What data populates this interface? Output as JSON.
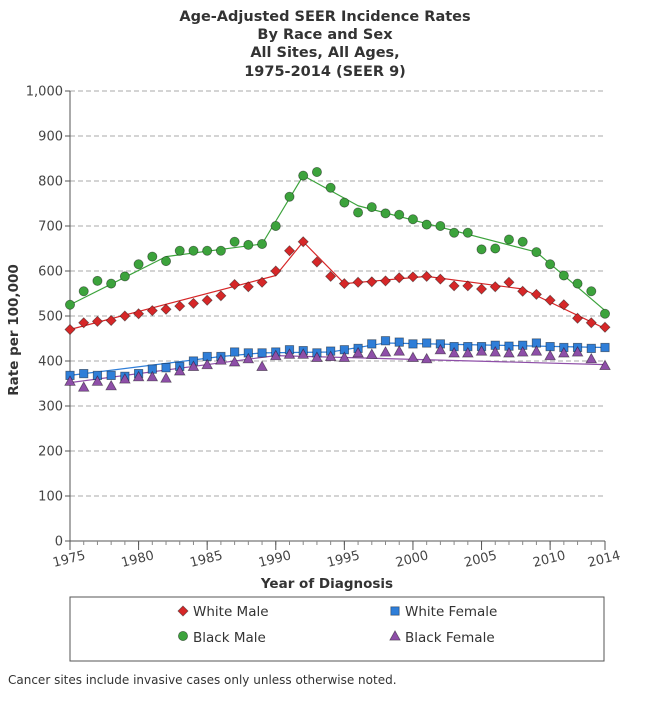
{
  "chart_data": {
    "type": "line",
    "title": [
      "Age-Adjusted SEER Incidence Rates",
      "By Race and Sex",
      "All Sites, All Ages,",
      "1975-2014 (SEER 9)"
    ],
    "xlabel": "Year of Diagnosis",
    "ylabel": "Rate per 100,000",
    "xlim": [
      1975,
      2014
    ],
    "ylim": [
      0,
      1000
    ],
    "x_ticks": [
      1975,
      1980,
      1985,
      1990,
      1995,
      2000,
      2005,
      2010,
      2014
    ],
    "y_ticks": [
      0,
      100,
      200,
      300,
      400,
      500,
      600,
      700,
      800,
      900,
      1000
    ],
    "y_tick_labels": [
      "0",
      "100",
      "200",
      "300",
      "400",
      "500",
      "600",
      "700",
      "800",
      "900",
      "1,000"
    ],
    "grid": "horizontal dashed",
    "legend_position": "bottom",
    "x": [
      1975,
      1976,
      1977,
      1978,
      1979,
      1980,
      1981,
      1982,
      1983,
      1984,
      1985,
      1986,
      1987,
      1988,
      1989,
      1990,
      1991,
      1992,
      1993,
      1994,
      1995,
      1996,
      1997,
      1998,
      1999,
      2000,
      2001,
      2002,
      2003,
      2004,
      2005,
      2006,
      2007,
      2008,
      2009,
      2010,
      2011,
      2012,
      2013,
      2014
    ],
    "series": [
      {
        "name": "White Male",
        "color": "#d62728",
        "marker": "diamond",
        "values": [
          470,
          485,
          488,
          490,
          500,
          505,
          512,
          515,
          522,
          528,
          535,
          545,
          570,
          565,
          575,
          600,
          645,
          665,
          620,
          588,
          572,
          575,
          576,
          578,
          585,
          587,
          588,
          582,
          567,
          567,
          560,
          565,
          575,
          555,
          548,
          535,
          525,
          495,
          485,
          475
        ],
        "trend": [
          [
            1975,
            470
          ],
          [
            1990,
            590
          ],
          [
            1992,
            665
          ],
          [
            1995,
            572
          ],
          [
            2001,
            588
          ],
          [
            2008,
            560
          ],
          [
            2014,
            472
          ]
        ]
      },
      {
        "name": "White Female",
        "color": "#2f7ed8",
        "marker": "square",
        "values": [
          368,
          372,
          368,
          368,
          366,
          372,
          382,
          385,
          388,
          400,
          410,
          410,
          420,
          418,
          418,
          420,
          425,
          423,
          418,
          422,
          425,
          428,
          438,
          445,
          442,
          438,
          440,
          438,
          432,
          432,
          432,
          435,
          433,
          435,
          440,
          432,
          430,
          430,
          428,
          430
        ],
        "trend": [
          [
            1975,
            368
          ],
          [
            1986,
            410
          ],
          [
            1989,
            418
          ],
          [
            1994,
            420
          ],
          [
            1998,
            440
          ],
          [
            2014,
            430
          ]
        ]
      },
      {
        "name": "Black Male",
        "color": "#3ca33c",
        "marker": "circle",
        "values": [
          525,
          555,
          578,
          572,
          588,
          615,
          632,
          622,
          645,
          645,
          645,
          645,
          665,
          658,
          660,
          700,
          765,
          812,
          820,
          785,
          752,
          730,
          742,
          728,
          725,
          715,
          703,
          700,
          685,
          685,
          648,
          650,
          670,
          665,
          642,
          615,
          590,
          572,
          555,
          505
        ],
        "trend": [
          [
            1975,
            525
          ],
          [
            1982,
            632
          ],
          [
            1989,
            660
          ],
          [
            1992,
            812
          ],
          [
            1996,
            745
          ],
          [
            2009,
            642
          ],
          [
            2014,
            512
          ]
        ]
      },
      {
        "name": "Black Female",
        "color": "#8e4fa8",
        "marker": "triangle",
        "values": [
          355,
          342,
          355,
          345,
          360,
          365,
          365,
          362,
          378,
          388,
          392,
          402,
          398,
          405,
          388,
          412,
          415,
          415,
          408,
          410,
          408,
          418,
          415,
          420,
          422,
          408,
          405,
          425,
          418,
          418,
          422,
          420,
          418,
          420,
          422,
          412,
          418,
          420,
          405,
          390
        ],
        "trend": [
          [
            1975,
            352
          ],
          [
            1990,
            412
          ],
          [
            2014,
            392
          ]
        ]
      }
    ],
    "footnote": "Cancer sites include invasive cases only unless otherwise noted."
  }
}
